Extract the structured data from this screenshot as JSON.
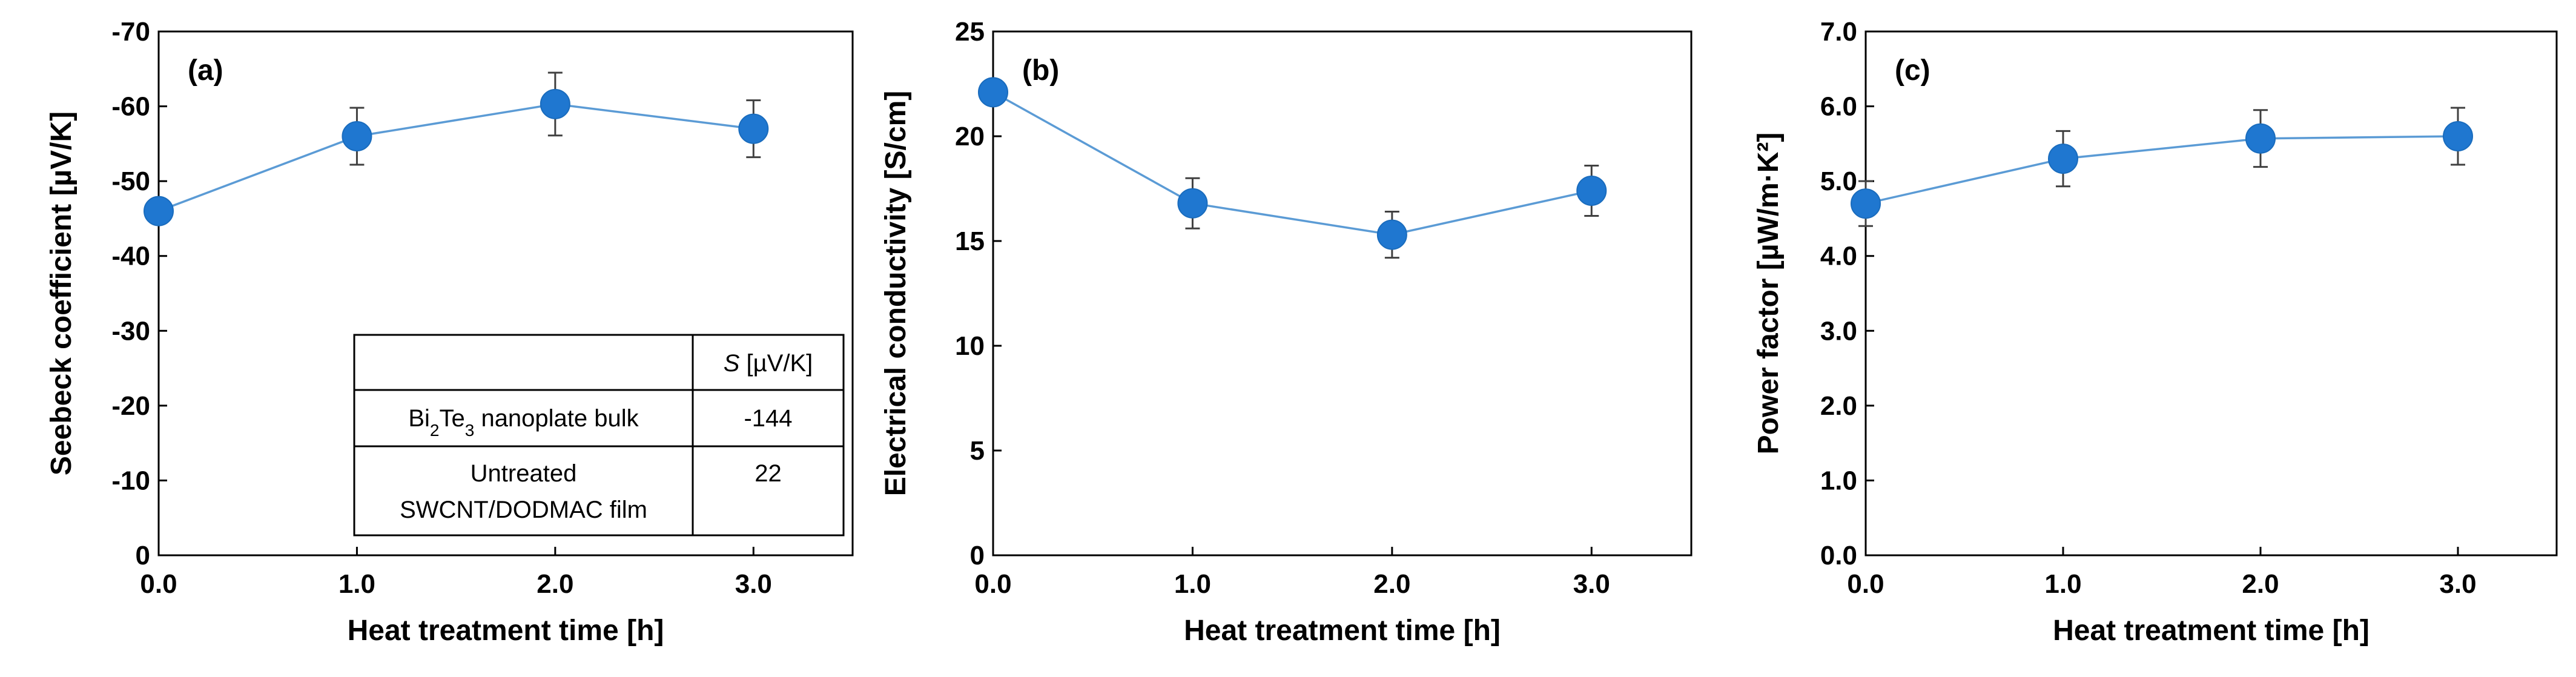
{
  "chart_data": [
    {
      "type": "scatter",
      "panel_label": "(a)",
      "xlabel": "Heat treatment time [h]",
      "ylabel": "Seebeck coefficient [µV/K]",
      "x": [
        0.0,
        1.0,
        2.0,
        3.0
      ],
      "y": [
        -46,
        -56,
        -60.3,
        -57
      ],
      "yerr": [
        0,
        3.8,
        4.2,
        3.8
      ],
      "xlim": [
        0.0,
        3.5
      ],
      "ylim": [
        0,
        -70
      ],
      "x_ticks": [
        0.0,
        1.0,
        2.0,
        3.0
      ],
      "x_tick_labels": [
        "0.0",
        "1.0",
        "2.0",
        "3.0"
      ],
      "y_ticks": [
        0,
        -10,
        -20,
        -30,
        -40,
        -50,
        -60,
        -70
      ],
      "y_tick_labels": [
        "0",
        "-10",
        "-20",
        "-30",
        "-40",
        "-50",
        "-60",
        "-70"
      ],
      "y_inverted": true,
      "marker_color": "#1f77d0",
      "line_color": "#5b9bd5",
      "inset_table": {
        "header": [
          "",
          "S [µV/K]"
        ],
        "rows": [
          {
            "material": "Bi2Te3 nanoplate bulk",
            "value": "-144"
          },
          {
            "material": "Untreated SWCNT/DODMAC film",
            "value": "22"
          }
        ]
      }
    },
    {
      "type": "scatter",
      "panel_label": "(b)",
      "xlabel": "Heat treatment time [h]",
      "ylabel": "Electrical conductivity [S/cm]",
      "x": [
        0.0,
        1.0,
        2.0,
        3.0
      ],
      "y": [
        22.1,
        16.8,
        15.3,
        17.4
      ],
      "yerr": [
        0,
        1.2,
        1.1,
        1.2
      ],
      "xlim": [
        0.0,
        3.5
      ],
      "ylim": [
        0,
        25
      ],
      "x_ticks": [
        0.0,
        1.0,
        2.0,
        3.0
      ],
      "x_tick_labels": [
        "0.0",
        "1.0",
        "2.0",
        "3.0"
      ],
      "y_ticks": [
        0,
        5,
        10,
        15,
        20,
        25
      ],
      "y_tick_labels": [
        "0",
        "5",
        "10",
        "15",
        "20",
        "25"
      ],
      "y_inverted": false,
      "marker_color": "#1f77d0",
      "line_color": "#5b9bd5"
    },
    {
      "type": "scatter",
      "panel_label": "(c)",
      "xlabel": "Heat treatment time [h]",
      "ylabel": "Power factor [µW/m·K²]",
      "x": [
        0.0,
        1.0,
        2.0,
        3.0
      ],
      "y": [
        4.7,
        5.3,
        5.57,
        5.6
      ],
      "yerr": [
        0.3,
        0.37,
        0.38,
        0.38
      ],
      "xlim": [
        0.0,
        3.5
      ],
      "ylim": [
        0,
        7
      ],
      "x_ticks": [
        0.0,
        1.0,
        2.0,
        3.0
      ],
      "x_tick_labels": [
        "0.0",
        "1.0",
        "2.0",
        "3.0"
      ],
      "y_ticks": [
        0,
        1,
        2,
        3,
        4,
        5,
        6,
        7
      ],
      "y_tick_labels": [
        "0.0",
        "1.0",
        "2.0",
        "3.0",
        "4.0",
        "5.0",
        "6.0",
        "7.0"
      ],
      "y_inverted": false,
      "marker_color": "#1f77d0",
      "line_color": "#5b9bd5"
    }
  ]
}
